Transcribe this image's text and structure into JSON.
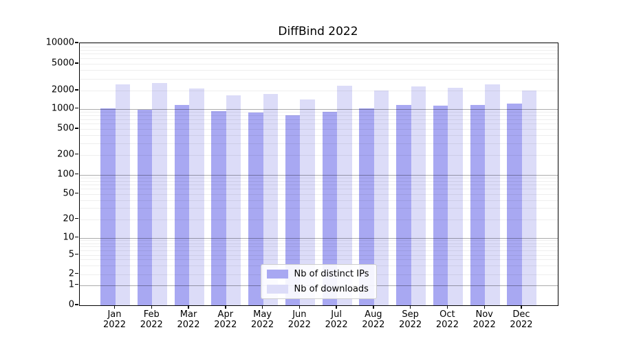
{
  "chart_data": {
    "type": "bar",
    "title": "DiffBind 2022",
    "categories": [
      "Jan",
      "Feb",
      "Mar",
      "Apr",
      "May",
      "Jun",
      "Jul",
      "Aug",
      "Sep",
      "Oct",
      "Nov",
      "Dec"
    ],
    "year_label": "2022",
    "series": [
      {
        "name": "Nb of distinct IPs",
        "color": "#a8a8f2",
        "values": [
          1030,
          980,
          1150,
          930,
          890,
          800,
          910,
          1030,
          1160,
          1120,
          1170,
          1220
        ]
      },
      {
        "name": "Nb of downloads",
        "color": "#dcdcf8",
        "values": [
          2450,
          2590,
          2130,
          1680,
          1760,
          1420,
          2340,
          2010,
          2280,
          2210,
          2470,
          1990
        ]
      }
    ],
    "yscale": "symlog",
    "yticks": [
      0,
      1,
      2,
      5,
      10,
      20,
      50,
      100,
      200,
      500,
      1000,
      2000,
      5000,
      10000
    ],
    "ylim": [
      0,
      10000
    ],
    "xlabel": "",
    "ylabel": "",
    "grid": "both (minor light gray, major gray at powers of 10, drawn over bars)",
    "legend_position": "lower center",
    "colors": {
      "axis": "#000000",
      "background": "#ffffff"
    }
  }
}
